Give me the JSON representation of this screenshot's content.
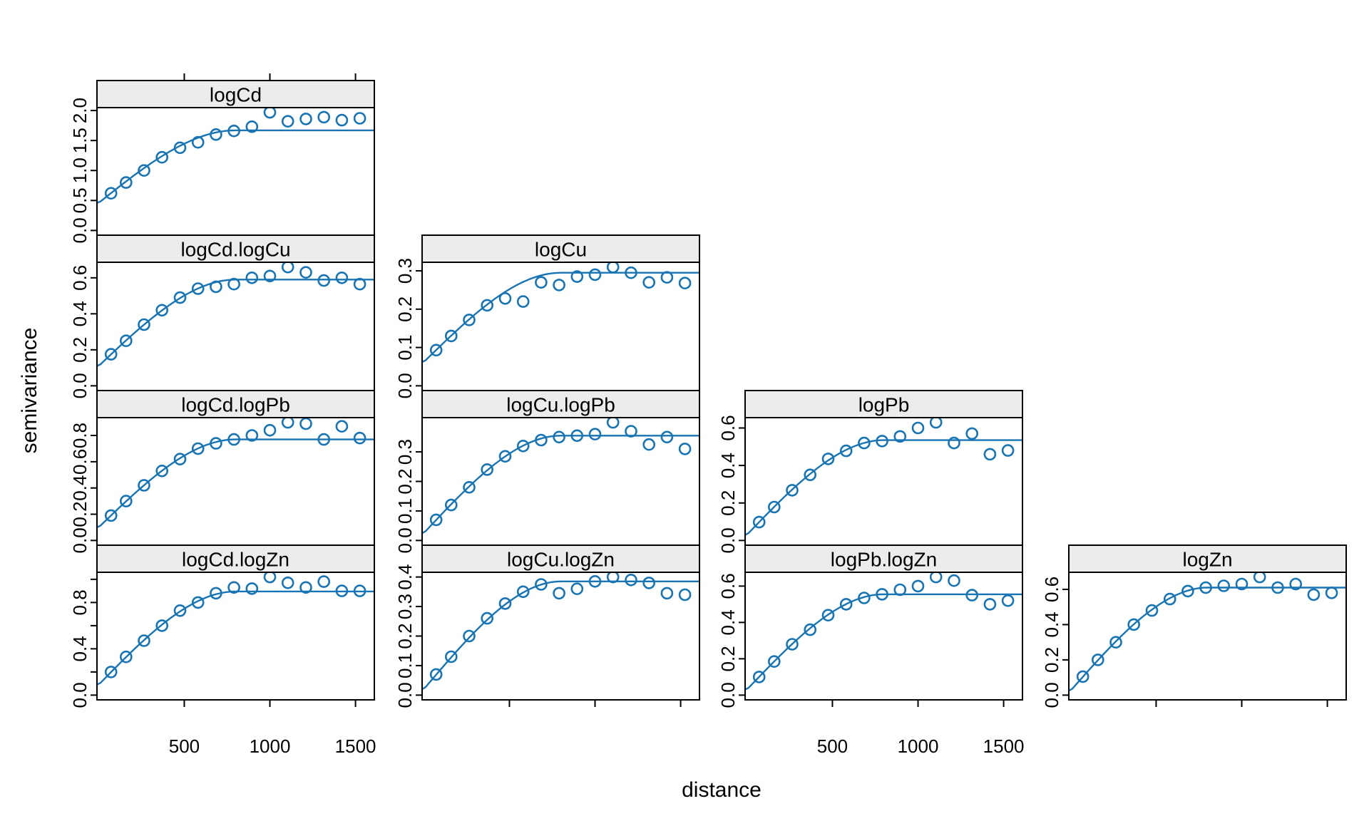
{
  "figure": {
    "xlabel": "distance",
    "ylabel": "semivariance"
  },
  "style": {
    "accent": "#1874b2",
    "strip_bg": "#ececec",
    "frame": "#000000",
    "text": "#000000"
  },
  "chart_data": {
    "type": "scatter",
    "title": "",
    "xlabel": "distance",
    "ylabel": "semivariance",
    "grid": false,
    "legend": "none",
    "variables": [
      "logCd",
      "logCu",
      "logPb",
      "logZn"
    ],
    "x": {
      "lim": [
        -10,
        1610
      ],
      "ticks": [
        500,
        1000,
        1500
      ],
      "tick_labels": [
        "500",
        "1000",
        "1500"
      ]
    },
    "distances": [
      72,
      160,
      265,
      370,
      475,
      580,
      685,
      790,
      895,
      1000,
      1105,
      1210,
      1315,
      1420,
      1525
    ],
    "panels": [
      {
        "id": "logCd",
        "label": "logCd",
        "row": 0,
        "col": 0,
        "values": [
          0.62,
          0.8,
          1.0,
          1.22,
          1.38,
          1.47,
          1.6,
          1.66,
          1.73,
          1.97,
          1.82,
          1.86,
          1.89,
          1.84,
          1.87
        ],
        "y_ticks": [
          0.0,
          0.5,
          1.0,
          1.5,
          2.0
        ],
        "y_tick_labels": [
          "0.0",
          "0.5",
          "1.0",
          "1.5",
          "2.0"
        ],
        "ylim": [
          -0.0788,
          2.0488
        ],
        "model": {
          "type": "spherical",
          "nugget": 0.46,
          "sill": 1.67,
          "range": 800
        }
      },
      {
        "id": "logCd.logCu",
        "label": "logCd.logCu",
        "row": 1,
        "col": 0,
        "values": [
          0.175,
          0.25,
          0.34,
          0.42,
          0.49,
          0.54,
          0.55,
          0.565,
          0.6,
          0.61,
          0.66,
          0.63,
          0.585,
          0.6,
          0.565
        ],
        "y_ticks": [
          0.0,
          0.2,
          0.4,
          0.6
        ],
        "y_tick_labels": [
          "0.0",
          "0.2",
          "0.4",
          "0.6"
        ],
        "ylim": [
          -0.0264,
          0.6864
        ],
        "model": {
          "type": "spherical",
          "nugget": 0.11,
          "sill": 0.59,
          "range": 800
        }
      },
      {
        "id": "logCu",
        "label": "logCu",
        "row": 1,
        "col": 1,
        "values": [
          0.093,
          0.13,
          0.172,
          0.21,
          0.228,
          0.22,
          0.27,
          0.263,
          0.285,
          0.29,
          0.31,
          0.295,
          0.27,
          0.283,
          0.268
        ],
        "y_ticks": [
          0.0,
          0.1,
          0.2,
          0.3
        ],
        "y_tick_labels": [
          "0.0",
          "0.1",
          "0.2",
          "0.3"
        ],
        "ylim": [
          -0.0124,
          0.3224
        ],
        "model": {
          "type": "spherical",
          "nugget": 0.062,
          "sill": 0.295,
          "range": 800
        }
      },
      {
        "id": "logCd.logPb",
        "label": "logCd.logPb",
        "row": 2,
        "col": 0,
        "values": [
          0.19,
          0.3,
          0.42,
          0.53,
          0.62,
          0.7,
          0.74,
          0.77,
          0.8,
          0.84,
          0.9,
          0.89,
          0.77,
          0.87,
          0.78
        ],
        "y_ticks": [
          0.0,
          0.2,
          0.4,
          0.6,
          0.8
        ],
        "y_tick_labels": [
          "0.0",
          "0.2",
          "0.4",
          "0.6",
          "0.8"
        ],
        "ylim": [
          -0.036,
          0.936
        ],
        "model": {
          "type": "spherical",
          "nugget": 0.1,
          "sill": 0.77,
          "range": 800
        }
      },
      {
        "id": "logCu.logPb",
        "label": "logCu.logPb",
        "row": 2,
        "col": 1,
        "values": [
          0.07,
          0.12,
          0.18,
          0.24,
          0.285,
          0.32,
          0.34,
          0.35,
          0.355,
          0.36,
          0.4,
          0.37,
          0.325,
          0.35,
          0.31
        ],
        "y_ticks": [
          0.0,
          0.1,
          0.2,
          0.3
        ],
        "y_tick_labels": [
          "0.0",
          "0.1",
          "0.2",
          "0.3"
        ],
        "ylim": [
          -0.016,
          0.416
        ],
        "model": {
          "type": "spherical",
          "nugget": 0.025,
          "sill": 0.355,
          "range": 800
        }
      },
      {
        "id": "logPb",
        "label": "logPb",
        "row": 2,
        "col": 2,
        "values": [
          0.098,
          0.178,
          0.268,
          0.35,
          0.435,
          0.478,
          0.52,
          0.53,
          0.555,
          0.6,
          0.63,
          0.52,
          0.57,
          0.46,
          0.48
        ],
        "y_ticks": [
          0.0,
          0.2,
          0.4,
          0.6
        ],
        "y_tick_labels": [
          "0.0",
          "0.2",
          "0.4",
          "0.6"
        ],
        "ylim": [
          -0.0252,
          0.6552
        ],
        "model": {
          "type": "spherical",
          "nugget": 0.03,
          "sill": 0.535,
          "range": 800
        }
      },
      {
        "id": "logCd.logZn",
        "label": "logCd.logZn",
        "row": 3,
        "col": 0,
        "values": [
          0.2,
          0.33,
          0.47,
          0.6,
          0.73,
          0.8,
          0.88,
          0.93,
          0.92,
          1.02,
          0.97,
          0.93,
          0.98,
          0.9,
          0.9
        ],
        "y_ticks": [
          0.0,
          0.2,
          0.4,
          0.6,
          0.8,
          1.0
        ],
        "y_tick_labels": [
          "0.0",
          "",
          "0.4",
          "",
          "0.8",
          ""
        ],
        "ylim": [
          -0.0408,
          1.0608
        ],
        "model": {
          "type": "spherical",
          "nugget": 0.09,
          "sill": 0.895,
          "range": 800
        }
      },
      {
        "id": "logCu.logZn",
        "label": "logCu.logZn",
        "row": 3,
        "col": 1,
        "values": [
          0.07,
          0.13,
          0.2,
          0.26,
          0.31,
          0.35,
          0.375,
          0.345,
          0.36,
          0.385,
          0.4,
          0.39,
          0.38,
          0.345,
          0.34
        ],
        "y_ticks": [
          0.0,
          0.1,
          0.2,
          0.3,
          0.4
        ],
        "y_tick_labels": [
          "0.0",
          "0.1",
          "0.2",
          "0.3",
          "0.4"
        ],
        "ylim": [
          -0.016,
          0.416
        ],
        "model": {
          "type": "spherical",
          "nugget": 0.02,
          "sill": 0.385,
          "range": 800
        }
      },
      {
        "id": "logPb.logZn",
        "label": "logPb.logZn",
        "row": 3,
        "col": 2,
        "values": [
          0.1,
          0.185,
          0.28,
          0.36,
          0.44,
          0.5,
          0.535,
          0.555,
          0.58,
          0.6,
          0.65,
          0.63,
          0.55,
          0.5,
          0.52
        ],
        "y_ticks": [
          0.0,
          0.2,
          0.4,
          0.6
        ],
        "y_tick_labels": [
          "0.0",
          "0.2",
          "0.4",
          "0.6"
        ],
        "ylim": [
          -0.026,
          0.676
        ],
        "model": {
          "type": "spherical",
          "nugget": 0.03,
          "sill": 0.555,
          "range": 800
        }
      },
      {
        "id": "logZn",
        "label": "logZn",
        "row": 3,
        "col": 3,
        "values": [
          0.105,
          0.2,
          0.3,
          0.4,
          0.48,
          0.545,
          0.59,
          0.61,
          0.62,
          0.63,
          0.67,
          0.61,
          0.63,
          0.57,
          0.58
        ],
        "y_ticks": [
          0.0,
          0.2,
          0.4,
          0.6
        ],
        "y_tick_labels": [
          "0.0",
          "0.2",
          "0.4",
          "0.6"
        ],
        "ylim": [
          -0.0268,
          0.6968
        ],
        "model": {
          "type": "spherical",
          "nugget": 0.025,
          "sill": 0.61,
          "range": 800
        }
      }
    ]
  }
}
